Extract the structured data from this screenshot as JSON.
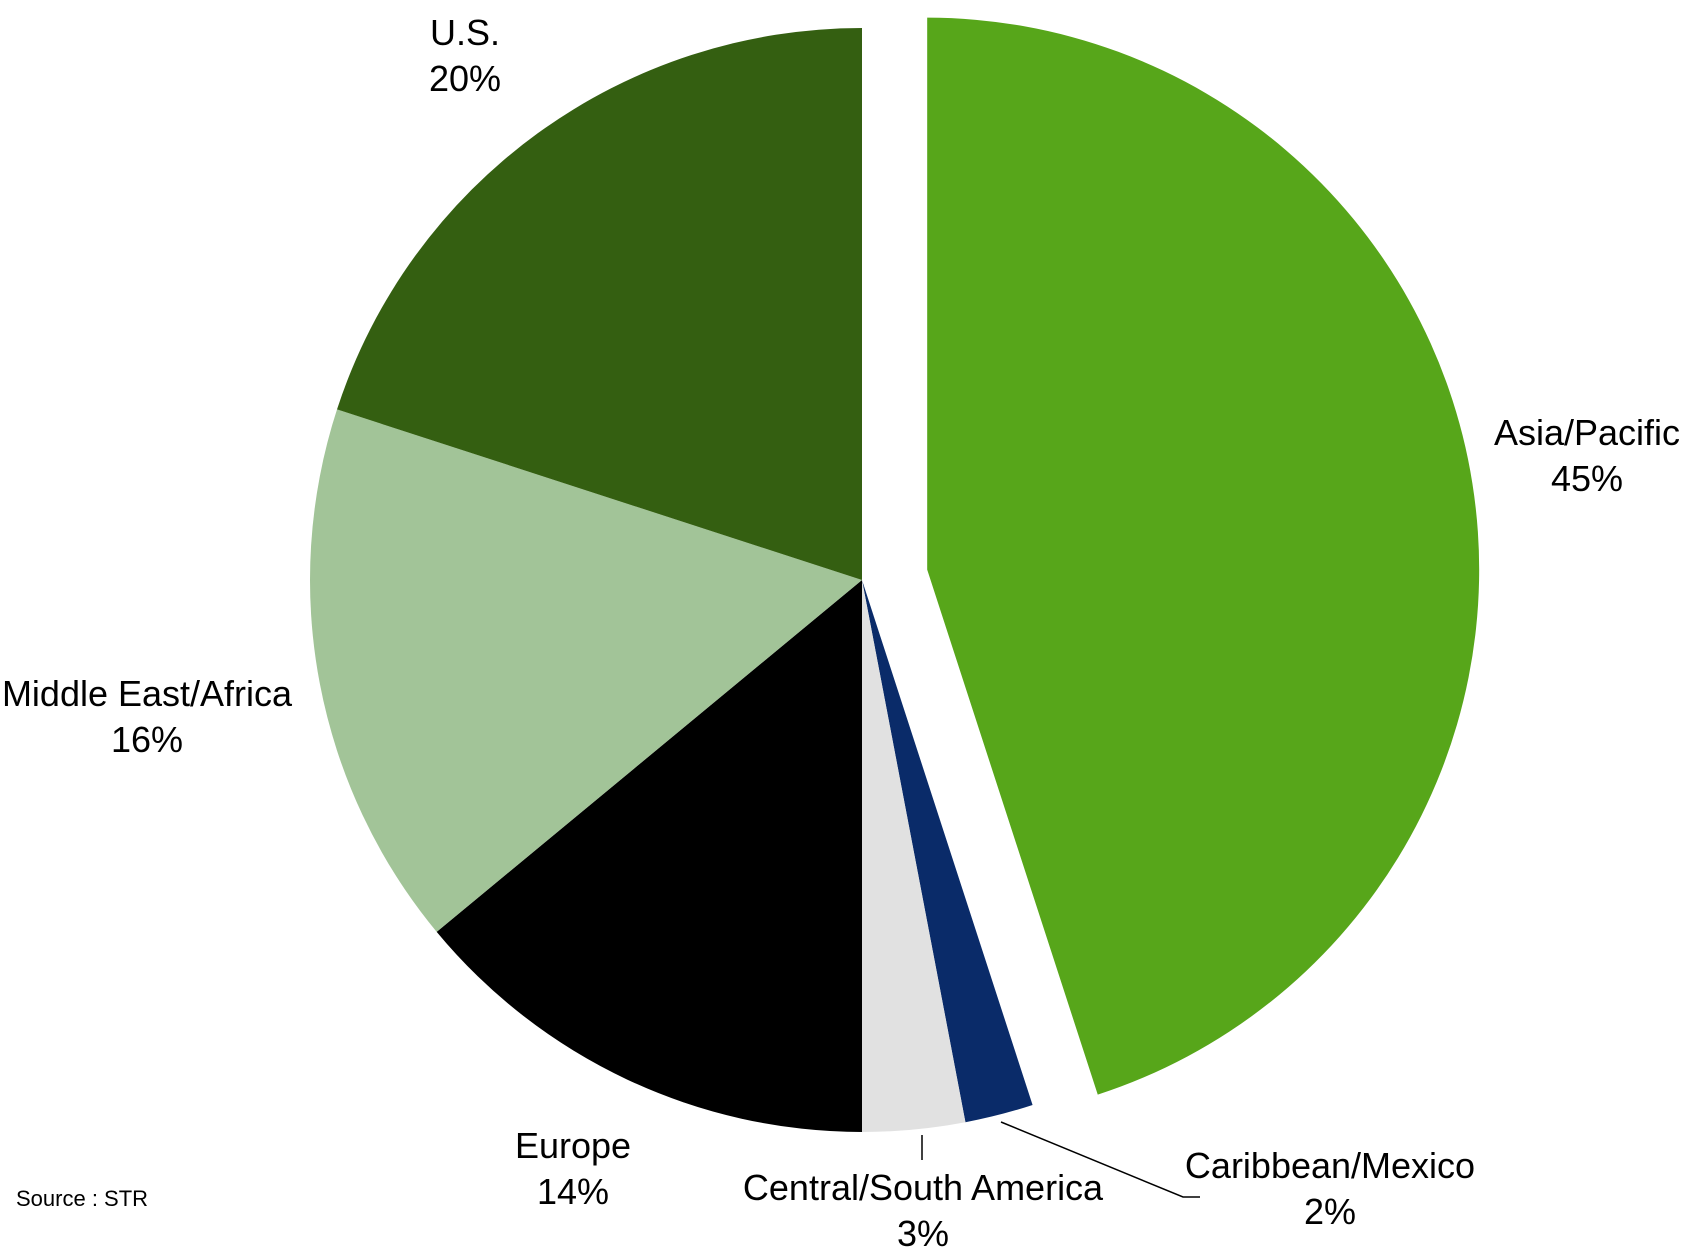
{
  "chart_data": {
    "type": "pie",
    "title": "",
    "unit": "%",
    "slices": [
      {
        "label": "Asia/Pacific",
        "value": 45,
        "value_label": "45%",
        "color": "#57a61a",
        "exploded": true
      },
      {
        "label": "Caribbean/Mexico",
        "value": 2,
        "value_label": "2%",
        "color": "#0a2b69",
        "exploded": false
      },
      {
        "label": "Central/South America",
        "value": 3,
        "value_label": "3%",
        "color": "#e1e1e1",
        "exploded": false
      },
      {
        "label": "Europe",
        "value": 14,
        "value_label": "14%",
        "color": "#000000",
        "exploded": false
      },
      {
        "label": "Middle East/Africa",
        "value": 16,
        "value_label": "16%",
        "color": "#a2c498",
        "exploded": false
      },
      {
        "label": "U.S.",
        "value": 20,
        "value_label": "20%",
        "color": "#345f11",
        "exploded": false
      }
    ],
    "start_angle": "12 o'clock",
    "direction": "clockwise",
    "labels_outside": true,
    "legend": "none"
  },
  "source": "Source : STR"
}
